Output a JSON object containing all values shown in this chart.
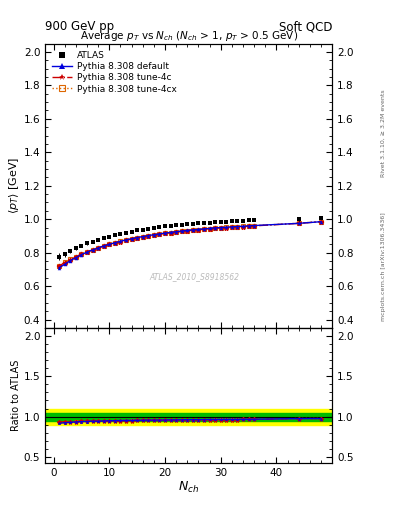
{
  "title_left": "900 GeV pp",
  "title_right": "Soft QCD",
  "plot_title": "Average $p_T$ vs $N_{ch}$ ($N_{ch}$ > 1, $p_T$ > 0.5 GeV)",
  "ylabel_main": "$\\langle p_T \\rangle$ [GeV]",
  "ylabel_ratio": "Ratio to ATLAS",
  "xlabel": "$N_{ch}$",
  "right_label_top": "Rivet 3.1.10, ≥ 3.2M events",
  "right_label_bottom": "mcplots.cern.ch [arXiv:1306.3436]",
  "watermark": "ATLAS_2010_S8918562",
  "main_ylim": [
    0.35,
    2.05
  ],
  "main_yticks": [
    0.4,
    0.6,
    0.8,
    1.0,
    1.2,
    1.4,
    1.6,
    1.8,
    2.0
  ],
  "ratio_ylim": [
    0.42,
    2.1
  ],
  "ratio_yticks": [
    0.5,
    1.0,
    1.5,
    2.0
  ],
  "xlim": [
    -1.5,
    50
  ],
  "atlas_x": [
    1,
    2,
    3,
    4,
    5,
    6,
    7,
    8,
    9,
    10,
    11,
    12,
    13,
    14,
    15,
    16,
    17,
    18,
    19,
    20,
    21,
    22,
    23,
    24,
    25,
    26,
    27,
    28,
    29,
    30,
    31,
    32,
    33,
    34,
    35,
    36,
    44,
    48
  ],
  "atlas_y": [
    0.775,
    0.79,
    0.81,
    0.825,
    0.84,
    0.855,
    0.865,
    0.878,
    0.888,
    0.896,
    0.905,
    0.912,
    0.92,
    0.926,
    0.933,
    0.938,
    0.943,
    0.948,
    0.953,
    0.957,
    0.96,
    0.964,
    0.967,
    0.97,
    0.973,
    0.976,
    0.978,
    0.98,
    0.982,
    0.984,
    0.986,
    0.988,
    0.99,
    0.991,
    0.993,
    0.994,
    1.0,
    1.01
  ],
  "atlas_yerr": [
    0.02,
    0.015,
    0.012,
    0.01,
    0.009,
    0.008,
    0.008,
    0.007,
    0.007,
    0.006,
    0.006,
    0.006,
    0.005,
    0.005,
    0.005,
    0.005,
    0.005,
    0.005,
    0.005,
    0.005,
    0.005,
    0.005,
    0.005,
    0.005,
    0.005,
    0.005,
    0.005,
    0.005,
    0.005,
    0.005,
    0.005,
    0.005,
    0.005,
    0.005,
    0.005,
    0.005,
    0.008,
    0.01
  ],
  "pythia_default_x": [
    1,
    2,
    3,
    4,
    5,
    6,
    7,
    8,
    9,
    10,
    11,
    12,
    13,
    14,
    15,
    16,
    17,
    18,
    19,
    20,
    21,
    22,
    23,
    24,
    25,
    26,
    27,
    28,
    29,
    30,
    31,
    32,
    33,
    34,
    35,
    36,
    44,
    48
  ],
  "pythia_default_y": [
    0.71,
    0.73,
    0.752,
    0.77,
    0.788,
    0.803,
    0.816,
    0.828,
    0.84,
    0.85,
    0.859,
    0.868,
    0.876,
    0.883,
    0.89,
    0.896,
    0.902,
    0.907,
    0.912,
    0.917,
    0.921,
    0.925,
    0.929,
    0.933,
    0.936,
    0.939,
    0.942,
    0.945,
    0.948,
    0.95,
    0.952,
    0.954,
    0.956,
    0.958,
    0.96,
    0.962,
    0.975,
    0.985
  ],
  "pythia_tune4c_x": [
    1,
    2,
    3,
    4,
    5,
    6,
    7,
    8,
    9,
    10,
    11,
    12,
    13,
    14,
    15,
    16,
    17,
    18,
    19,
    20,
    21,
    22,
    23,
    24,
    25,
    26,
    27,
    28,
    29,
    30,
    31,
    32,
    33,
    34,
    35,
    36,
    44,
    48
  ],
  "pythia_tune4c_y": [
    0.72,
    0.74,
    0.758,
    0.774,
    0.79,
    0.804,
    0.816,
    0.828,
    0.839,
    0.849,
    0.858,
    0.866,
    0.874,
    0.881,
    0.888,
    0.894,
    0.9,
    0.905,
    0.91,
    0.915,
    0.919,
    0.923,
    0.927,
    0.931,
    0.934,
    0.937,
    0.94,
    0.943,
    0.946,
    0.948,
    0.95,
    0.952,
    0.954,
    0.956,
    0.958,
    0.96,
    0.975,
    0.985
  ],
  "pythia_tune4cx_x": [
    1,
    2,
    3,
    4,
    5,
    6,
    7,
    8,
    9,
    10,
    11,
    12,
    13,
    14,
    15,
    16,
    17,
    18,
    19,
    20,
    21,
    22,
    23,
    24,
    25,
    26,
    27,
    28,
    29,
    30,
    31,
    32,
    33,
    34,
    35,
    36,
    44,
    48
  ],
  "pythia_tune4cx_y": [
    0.722,
    0.742,
    0.76,
    0.776,
    0.791,
    0.805,
    0.817,
    0.829,
    0.84,
    0.85,
    0.859,
    0.867,
    0.875,
    0.882,
    0.889,
    0.895,
    0.901,
    0.906,
    0.911,
    0.916,
    0.92,
    0.924,
    0.928,
    0.932,
    0.935,
    0.938,
    0.941,
    0.944,
    0.947,
    0.949,
    0.951,
    0.953,
    0.955,
    0.957,
    0.959,
    0.961,
    0.976,
    0.986
  ],
  "atlas_color": "#000000",
  "pythia_default_color": "#0000dd",
  "pythia_tune4c_color": "#cc0000",
  "pythia_tune4cx_color": "#dd6600",
  "band_yellow": "#ffff00",
  "band_green": "#00bb00",
  "background_color": "#ffffff"
}
